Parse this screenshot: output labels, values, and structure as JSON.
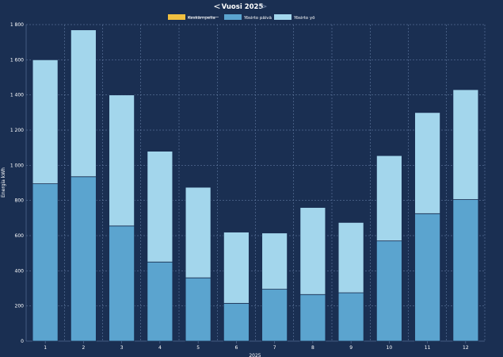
{
  "header": {
    "title": "Vuosi 2025",
    "prev_icon": "chevron-left-icon",
    "next_icon": "chevron-right-icon"
  },
  "chart_data": {
    "type": "bar",
    "stacked": true,
    "title": "",
    "xlabel": "2025",
    "ylabel": "Energia  kWh",
    "ylim": [
      0,
      1800
    ],
    "yticks": [
      "0",
      "200",
      "400",
      "600",
      "800",
      "1 000",
      "1 200",
      "1 400",
      "1 600",
      "1 800"
    ],
    "categories": [
      "1",
      "2",
      "3",
      "4",
      "5",
      "6",
      "7",
      "8",
      "9",
      "10",
      "11",
      "12"
    ],
    "grid": true,
    "legend_position": "top-center",
    "series": [
      {
        "name": "Keskämpelia",
        "color": "#f0c040",
        "hidden": true,
        "values": [
          0,
          0,
          0,
          0,
          0,
          0,
          0,
          0,
          0,
          0,
          0,
          0
        ]
      },
      {
        "name": "Yösirto päivä",
        "color": "#5ba4cf",
        "values": [
          895,
          935,
          655,
          450,
          360,
          215,
          295,
          265,
          275,
          570,
          725,
          805
        ]
      },
      {
        "name": "Yösirto yö",
        "color": "#a3d6ec",
        "values": [
          705,
          835,
          745,
          630,
          515,
          405,
          320,
          495,
          400,
          485,
          575,
          625
        ]
      }
    ]
  }
}
